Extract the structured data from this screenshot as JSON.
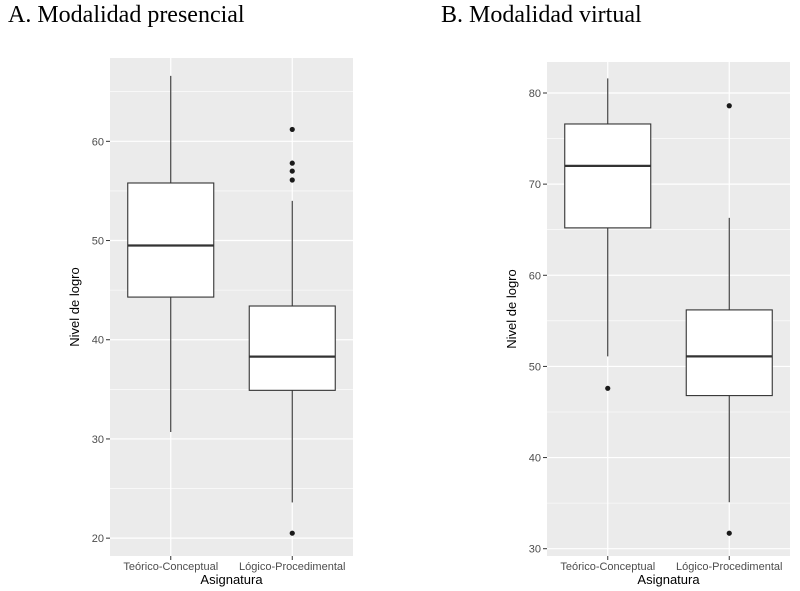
{
  "titles": {
    "a": "A. Modalidad presencial",
    "b": "B. Modalidad virtual"
  },
  "chart_data": [
    {
      "type": "boxplot",
      "title": "A. Modalidad presencial",
      "xlabel": "Asignatura",
      "ylabel": "Nivel de logro",
      "ylim": [
        18.2,
        68.4
      ],
      "yticks": [
        20,
        30,
        40,
        50,
        60
      ],
      "categories": [
        "Teórico-Conceptual",
        "Lógico-Procedimental"
      ],
      "boxes": [
        {
          "category": "Teórico-Conceptual",
          "whisker_low": 30.7,
          "q1": 44.3,
          "median": 49.5,
          "q3": 55.8,
          "whisker_high": 66.6,
          "outliers": []
        },
        {
          "category": "Lógico-Procedimental",
          "whisker_low": 23.6,
          "q1": 34.9,
          "median": 38.3,
          "q3": 43.4,
          "whisker_high": 54.0,
          "outliers": [
            20.5,
            56.1,
            57.0,
            57.8,
            61.2
          ]
        }
      ],
      "grid": true
    },
    {
      "type": "boxplot",
      "title": "B. Modalidad virtual",
      "xlabel": "Asignatura",
      "ylabel": "Nivel de logro",
      "ylim": [
        29.2,
        83.4
      ],
      "yticks": [
        30,
        40,
        50,
        60,
        70,
        80
      ],
      "categories": [
        "Teórico-Conceptual",
        "Lógico-Procedimental"
      ],
      "boxes": [
        {
          "category": "Teórico-Conceptual",
          "whisker_low": 51.1,
          "q1": 65.2,
          "median": 72.0,
          "q3": 76.6,
          "whisker_high": 81.6,
          "outliers": [
            47.6
          ]
        },
        {
          "category": "Lógico-Procedimental",
          "whisker_low": 35.1,
          "q1": 46.8,
          "median": 51.1,
          "q3": 56.2,
          "whisker_high": 66.3,
          "outliers": [
            31.7,
            78.6
          ]
        }
      ],
      "grid": true
    }
  ]
}
